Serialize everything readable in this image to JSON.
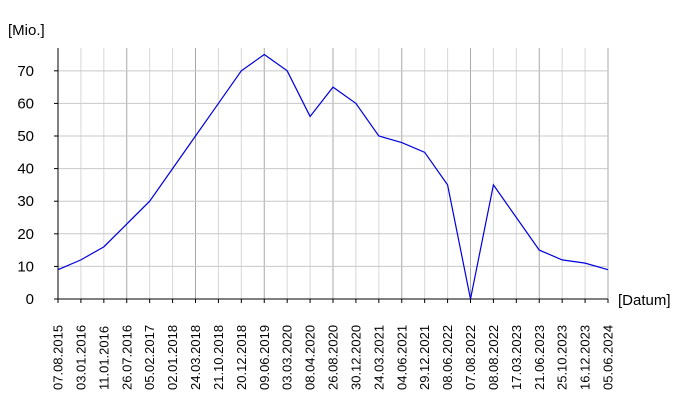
{
  "chart_data": {
    "type": "line",
    "ylabel": "[Mio.]",
    "xlabel": "[Datum]",
    "ylim": [
      0,
      77
    ],
    "yticks": [
      0,
      10,
      20,
      30,
      40,
      50,
      60,
      70
    ],
    "grid": true,
    "x": [
      "07.08.2015",
      "03.01.2016",
      "11.01.2016",
      "26.07.2016",
      "05.02.2017",
      "02.01.2018",
      "24.03.2018",
      "21.10.2018",
      "20.12.2018",
      "09.06.2019",
      "03.03.2020",
      "08.04.2020",
      "26.08.2020",
      "30.12.2020",
      "24.03.2021",
      "04.06.2021",
      "29.12.2021",
      "08.06.2022",
      "07.08.2022",
      "08.08.2022",
      "17.03.2023",
      "21.06.2023",
      "25.10.2023",
      "16.12.2023",
      "05.06.2024"
    ],
    "series": [
      {
        "color": "#0000dd",
        "values": [
          9,
          12,
          16,
          23,
          30,
          40,
          50,
          60,
          70,
          75,
          70,
          56,
          65,
          60,
          50,
          48,
          45,
          35,
          0,
          35,
          25,
          15,
          12,
          11,
          9
        ]
      }
    ]
  }
}
